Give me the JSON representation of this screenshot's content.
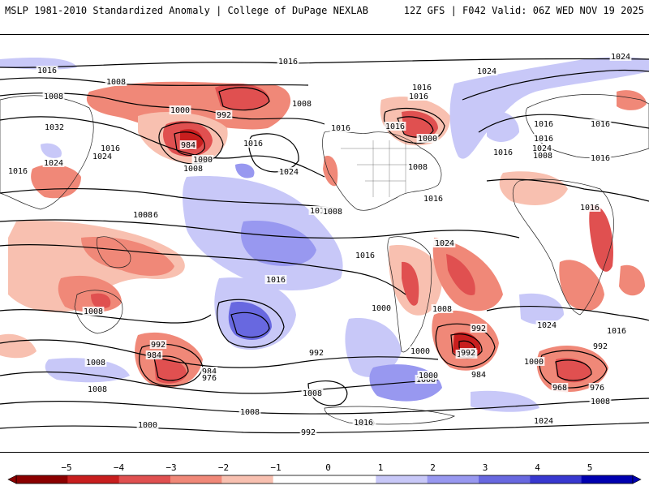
{
  "header": {
    "left_title": "MSLP 1981-2010 Standardized Anomaly | College of DuPage NEXLAB",
    "right_title": "12Z GFS | F042 Valid: 06Z WED NOV 19 2025"
  },
  "colors": {
    "neg5": "#8b0000",
    "neg4": "#c81e1e",
    "neg3": "#e05050",
    "neg2": "#f08878",
    "neg1": "#f8c0b0",
    "zero": "#ffffff",
    "pos1": "#c8c8f8",
    "pos2": "#9898f0",
    "pos3": "#6868e0",
    "pos4": "#3838d0",
    "pos5": "#0000b0"
  },
  "colorbar": {
    "ticks": [
      "−5",
      "−4",
      "−3",
      "−2",
      "−1",
      "0",
      "1",
      "2",
      "3",
      "4",
      "5"
    ]
  },
  "isobars": {
    "labels": [
      "1016",
      "1024",
      "1016",
      "1008",
      "1008",
      "1024",
      "1016",
      "1008",
      "1016",
      "1000",
      "992",
      "1032",
      "1016",
      "1024",
      "1024",
      "984",
      "1008",
      "1000",
      "1016",
      "1024",
      "1016",
      "1000",
      "1016",
      "1016",
      "1016",
      "1016",
      "1016",
      "1024",
      "1008",
      "1016",
      "1008",
      "1016",
      "1008",
      "1016",
      "1008",
      "1016",
      "1016",
      "1008",
      "1024",
      "1016",
      "1024",
      "1000",
      "1000",
      "1008",
      "992",
      "1016",
      "992",
      "1008",
      "1000",
      "1008",
      "1000",
      "984",
      "976",
      "992",
      "984",
      "992",
      "1000",
      "1008",
      "992",
      "984",
      "992",
      "968",
      "976",
      "1008",
      "1000",
      "1008",
      "1008",
      "1000",
      "1016",
      "1024",
      "1016",
      "1016",
      "1008"
    ]
  }
}
